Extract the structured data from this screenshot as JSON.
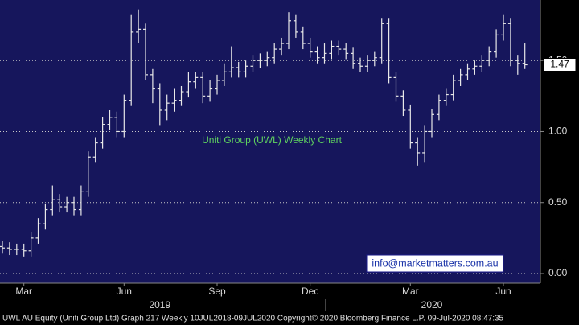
{
  "chart_data": {
    "type": "ohlc",
    "title": "Uniti Group (UWL) Weekly Chart",
    "watermark": "info@marketmatters.com.au",
    "footer": "UWL AU Equity (Uniti Group Ltd) Graph 217  Weekly 10JUL2018-09JUL2020 Copyright© 2020 Bloomberg Finance L.P.  09-Jul-2020 08:47:35",
    "categories": [
      null,
      null,
      null,
      "Mar",
      null,
      null,
      null,
      null,
      null,
      null,
      null,
      null,
      null,
      null,
      null,
      null,
      null,
      "Jun",
      null,
      null,
      null,
      null,
      null,
      null,
      null,
      null,
      null,
      null,
      null,
      null,
      "Sep",
      null,
      null,
      null,
      null,
      null,
      null,
      null,
      null,
      null,
      null,
      null,
      null,
      "Dec",
      null,
      null,
      null,
      null,
      null,
      null,
      null,
      null,
      null,
      null,
      null,
      null,
      null,
      "Mar",
      null,
      null,
      null,
      null,
      null,
      null,
      null,
      null,
      null,
      null,
      null,
      null,
      "Jun",
      null,
      null,
      null
    ],
    "year_labels": [
      null,
      null,
      null,
      null,
      null,
      null,
      null,
      null,
      null,
      null,
      null,
      null,
      null,
      null,
      null,
      null,
      null,
      null,
      null,
      null,
      null,
      null,
      "2019",
      null,
      null,
      null,
      null,
      null,
      null,
      null,
      null,
      null,
      null,
      null,
      null,
      null,
      null,
      null,
      null,
      null,
      null,
      null,
      null,
      null,
      null,
      null,
      null,
      null,
      null,
      null,
      null,
      null,
      null,
      null,
      null,
      null,
      null,
      null,
      null,
      null,
      "2020",
      null,
      null,
      null,
      null,
      null,
      null,
      null,
      null,
      null,
      null,
      null,
      null,
      null
    ],
    "open": [
      0.19,
      0.18,
      0.17,
      0.17,
      0.16,
      0.25,
      0.35,
      0.45,
      0.52,
      0.47,
      0.5,
      0.45,
      0.58,
      0.82,
      0.92,
      1.05,
      1.1,
      1.0,
      1.22,
      1.7,
      1.72,
      1.4,
      1.3,
      1.15,
      1.2,
      1.22,
      1.28,
      1.35,
      1.38,
      1.25,
      1.3,
      1.36,
      1.42,
      1.45,
      1.42,
      1.46,
      1.5,
      1.5,
      1.52,
      1.58,
      1.62,
      1.78,
      1.7,
      1.62,
      1.56,
      1.52,
      1.55,
      1.6,
      1.58,
      1.55,
      1.48,
      1.46,
      1.5,
      1.52,
      1.76,
      1.38,
      1.25,
      1.15,
      0.92,
      0.85,
      1.0,
      1.12,
      1.22,
      1.26,
      1.36,
      1.4,
      1.44,
      1.46,
      1.5,
      1.56,
      1.68,
      1.76,
      1.5,
      1.48
    ],
    "high": [
      0.23,
      0.22,
      0.21,
      0.21,
      0.29,
      0.39,
      0.49,
      0.62,
      0.56,
      0.54,
      0.54,
      0.62,
      0.86,
      0.96,
      1.1,
      1.15,
      1.14,
      1.26,
      1.82,
      1.86,
      1.76,
      1.44,
      1.34,
      1.26,
      1.3,
      1.32,
      1.42,
      1.42,
      1.42,
      1.36,
      1.4,
      1.48,
      1.6,
      1.49,
      1.5,
      1.54,
      1.55,
      1.56,
      1.62,
      1.66,
      1.84,
      1.82,
      1.74,
      1.66,
      1.6,
      1.62,
      1.64,
      1.64,
      1.62,
      1.59,
      1.52,
      1.54,
      1.56,
      1.8,
      1.8,
      1.42,
      1.29,
      1.19,
      0.96,
      1.04,
      1.16,
      1.26,
      1.3,
      1.4,
      1.44,
      1.48,
      1.5,
      1.54,
      1.6,
      1.72,
      1.82,
      1.8,
      1.54,
      1.62
    ],
    "low": [
      0.14,
      0.13,
      0.13,
      0.12,
      0.12,
      0.21,
      0.31,
      0.41,
      0.43,
      0.43,
      0.41,
      0.41,
      0.54,
      0.78,
      0.88,
      1.01,
      0.96,
      0.96,
      1.18,
      1.62,
      1.36,
      1.2,
      1.04,
      1.08,
      1.14,
      1.18,
      1.24,
      1.3,
      1.2,
      1.21,
      1.26,
      1.32,
      1.38,
      1.38,
      1.38,
      1.42,
      1.45,
      1.46,
      1.48,
      1.54,
      1.58,
      1.66,
      1.58,
      1.52,
      1.48,
      1.48,
      1.51,
      1.54,
      1.51,
      1.44,
      1.42,
      1.42,
      1.46,
      1.48,
      1.34,
      1.21,
      1.11,
      0.88,
      0.76,
      0.78,
      0.96,
      1.08,
      1.18,
      1.22,
      1.32,
      1.36,
      1.4,
      1.42,
      1.46,
      1.52,
      1.64,
      1.46,
      1.4,
      1.44
    ],
    "close": [
      0.18,
      0.17,
      0.17,
      0.16,
      0.25,
      0.35,
      0.45,
      0.52,
      0.47,
      0.5,
      0.45,
      0.58,
      0.82,
      0.92,
      1.05,
      1.1,
      1.0,
      1.22,
      1.7,
      1.72,
      1.4,
      1.3,
      1.15,
      1.2,
      1.22,
      1.28,
      1.35,
      1.38,
      1.25,
      1.3,
      1.36,
      1.42,
      1.45,
      1.42,
      1.46,
      1.5,
      1.5,
      1.52,
      1.58,
      1.62,
      1.78,
      1.7,
      1.62,
      1.56,
      1.52,
      1.55,
      1.6,
      1.58,
      1.55,
      1.48,
      1.46,
      1.5,
      1.52,
      1.76,
      1.38,
      1.25,
      1.15,
      0.92,
      0.85,
      1.0,
      1.12,
      1.22,
      1.26,
      1.36,
      1.4,
      1.44,
      1.46,
      1.5,
      1.56,
      1.68,
      1.76,
      1.5,
      1.48,
      1.47
    ],
    "last_price": {
      "value": 1.47,
      "label": "1.47"
    },
    "color": "#e8e8e8",
    "background": "#16165c",
    "title_color": "#5fd35f",
    "ylim": [
      -0.068,
      1.926
    ],
    "yticks": [
      {
        "value": 0,
        "label": "0.00"
      },
      {
        "value": 0.5,
        "label": "0.50"
      },
      {
        "value": 1,
        "label": "1.00"
      },
      {
        "value": 1.5,
        "label": "1.50"
      }
    ],
    "grid": true
  }
}
